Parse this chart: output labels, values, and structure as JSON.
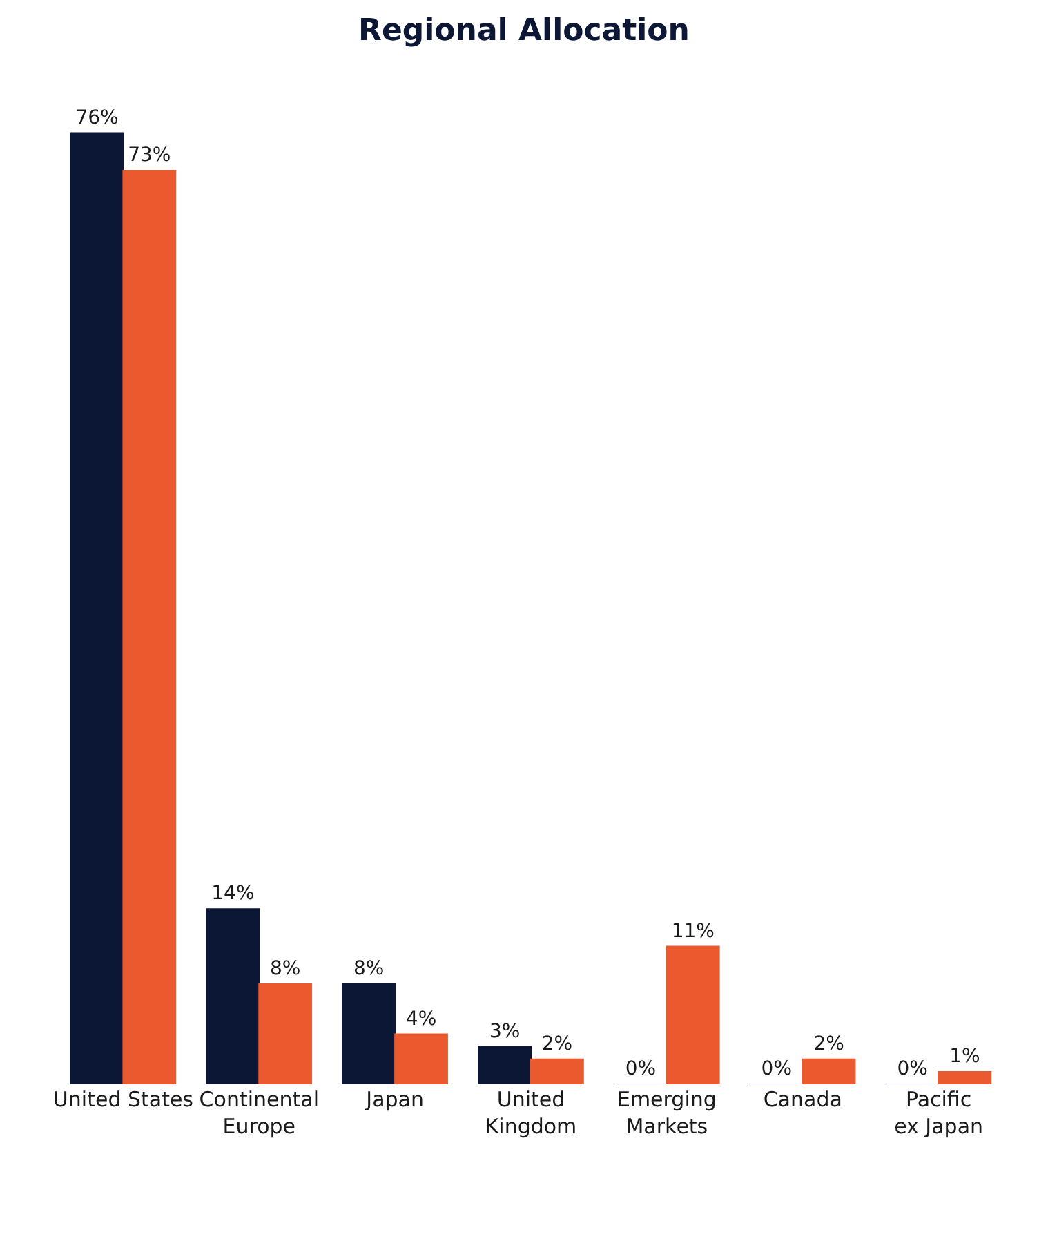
{
  "chart_data": {
    "type": "bar",
    "title": "Regional Allocation",
    "categories": [
      "United States",
      "Continental Europe",
      "Japan",
      "United Kingdom",
      "Emerging Markets",
      "Canada",
      "Pacific ex Japan"
    ],
    "series": [
      {
        "color": "#0b1734",
        "values": [
          76,
          14,
          8,
          3,
          0,
          0,
          0
        ],
        "value_labels": [
          "76%",
          "14%",
          "8%",
          "3%",
          "0%",
          "0%",
          "0%"
        ]
      },
      {
        "color": "#eb5a2e",
        "values": [
          73,
          8,
          4,
          2,
          11,
          2,
          1
        ],
        "value_labels": [
          "73%",
          "8%",
          "4%",
          "2%",
          "11%",
          "2%",
          "1%"
        ]
      }
    ]
  }
}
